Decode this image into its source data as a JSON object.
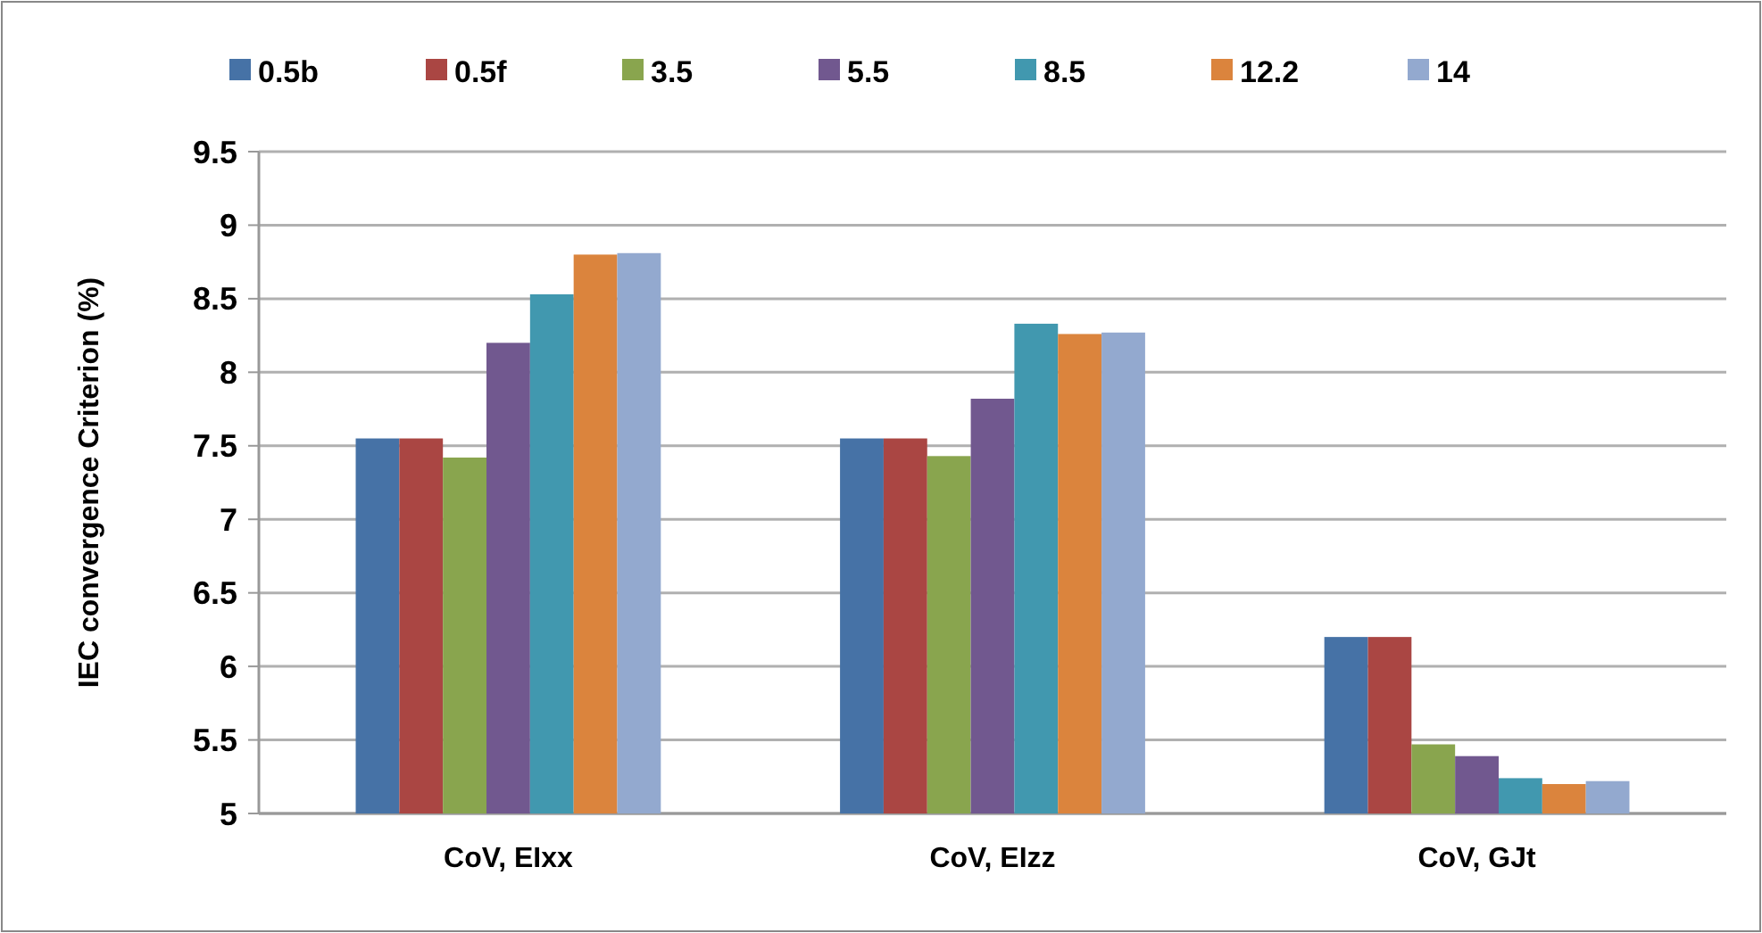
{
  "chart_data": {
    "type": "bar",
    "ylabel": "IEC convergence Criterion (%)",
    "categories": [
      "CoV, EIxx",
      "CoV, EIzz",
      "CoV, GJt"
    ],
    "series": [
      {
        "name": "0.5b",
        "color": "#4672a6",
        "values": [
          7.55,
          7.55,
          6.2
        ]
      },
      {
        "name": "0.5f",
        "color": "#aa4643",
        "values": [
          7.55,
          7.55,
          6.2
        ]
      },
      {
        "name": "3.5",
        "color": "#89a54e",
        "values": [
          7.42,
          7.43,
          5.47
        ]
      },
      {
        "name": "5.5",
        "color": "#71588f",
        "values": [
          8.2,
          7.82,
          5.39
        ]
      },
      {
        "name": "8.5",
        "color": "#4198af",
        "values": [
          8.53,
          8.33,
          5.24
        ]
      },
      {
        "name": "12.2",
        "color": "#db843d",
        "values": [
          8.8,
          8.26,
          5.2
        ]
      },
      {
        "name": "14",
        "color": "#93a9cf",
        "values": [
          8.81,
          8.27,
          5.22
        ]
      }
    ],
    "ylim": [
      5,
      9.5
    ],
    "yticks": [
      5,
      5.5,
      6,
      6.5,
      7,
      7.5,
      8,
      8.5,
      9,
      9.5
    ],
    "grid": "y",
    "legend": "top"
  }
}
